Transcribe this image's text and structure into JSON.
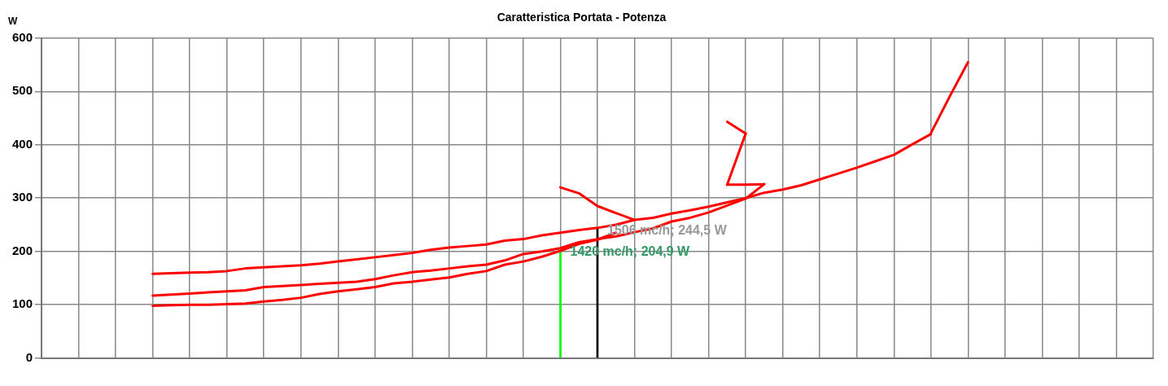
{
  "chart_data": {
    "type": "line",
    "title": "Caratteristica Portata - Potenza",
    "ylabel": "W",
    "categories": [
      null,
      null,
      null,
      null,
      null,
      null,
      null,
      null,
      null,
      null,
      null,
      null,
      null,
      null,
      null,
      null,
      null,
      null,
      null,
      null,
      null,
      null,
      null,
      null,
      null,
      null,
      null,
      null,
      null,
      null,
      null,
      null,
      null,
      null,
      null,
      null,
      null,
      null,
      null,
      null,
      null,
      null,
      null,
      null,
      null,
      null,
      null,
      null,
      null,
      null,
      null,
      null,
      null,
      null,
      null,
      null,
      null,
      null,
      null,
      null,
      null
    ],
    "series": [
      {
        "color": "#ff0000",
        "values": [
          null,
          null,
          null,
          null,
          null,
          null,
          158,
          159,
          160,
          161,
          163,
          168,
          170,
          172,
          174,
          177,
          181,
          185,
          189,
          193,
          197,
          203,
          207,
          210,
          213,
          220,
          223,
          230,
          235,
          240,
          244,
          250,
          259,
          263,
          271,
          277,
          284,
          292,
          300,
          310,
          316,
          324,
          335,
          346,
          357,
          369,
          381,
          401,
          420,
          null,
          null,
          null,
          null,
          null,
          null,
          null,
          null,
          null,
          null,
          null,
          null
        ]
      },
      {
        "color": "#ff0000",
        "values": [
          null,
          null,
          null,
          null,
          null,
          null,
          null,
          null,
          null,
          null,
          null,
          null,
          null,
          null,
          null,
          null,
          null,
          null,
          null,
          null,
          null,
          null,
          null,
          null,
          null,
          null,
          null,
          null,
          null,
          null,
          null,
          null,
          null,
          null,
          null,
          null,
          null,
          null,
          null,
          null,
          null,
          null,
          null,
          null,
          null,
          null,
          null,
          null,
          422,
          490,
          555,
          null,
          null,
          null,
          null,
          null,
          null,
          null,
          null,
          null,
          null
        ]
      },
      {
        "color": "#ff0000",
        "values": [
          null,
          null,
          null,
          null,
          null,
          null,
          null,
          null,
          null,
          null,
          null,
          null,
          null,
          null,
          null,
          null,
          null,
          null,
          null,
          null,
          null,
          null,
          null,
          null,
          null,
          null,
          null,
          null,
          320,
          309,
          285,
          272,
          259,
          null,
          null,
          null,
          null,
          null,
          null,
          null,
          null,
          null,
          null,
          null,
          null,
          null,
          null,
          null,
          null,
          null,
          null,
          null,
          null,
          null,
          null,
          null,
          null,
          null,
          null,
          null,
          null
        ]
      },
      {
        "color": "#ff0000",
        "values": [
          null,
          null,
          null,
          null,
          null,
          null,
          117,
          119,
          121,
          123,
          125,
          127,
          133,
          135,
          137,
          139,
          141,
          143,
          148,
          155,
          161,
          164,
          168,
          172,
          175,
          183,
          195,
          200,
          206,
          217,
          223,
          228,
          236,
          243,
          256,
          263,
          273,
          286,
          299,
          326,
          null,
          null,
          null,
          null,
          null,
          null,
          null,
          null,
          null,
          null,
          null,
          null,
          null,
          null,
          null,
          null,
          null,
          null,
          null,
          null,
          null
        ]
      },
      {
        "color": "#ff0000",
        "values": [
          null,
          null,
          null,
          null,
          null,
          null,
          null,
          null,
          null,
          null,
          null,
          null,
          null,
          null,
          null,
          null,
          null,
          null,
          null,
          null,
          null,
          null,
          null,
          null,
          null,
          null,
          null,
          null,
          null,
          null,
          null,
          null,
          null,
          null,
          null,
          null,
          null,
          325,
          325,
          326,
          null,
          null,
          null,
          null,
          null,
          null,
          null,
          null,
          null,
          null,
          null,
          null,
          null,
          null,
          null,
          null,
          null,
          null,
          null,
          null,
          null
        ]
      },
      {
        "color": "#ff0000",
        "values": [
          null,
          null,
          null,
          null,
          null,
          null,
          null,
          null,
          null,
          null,
          null,
          null,
          null,
          null,
          null,
          null,
          null,
          null,
          null,
          null,
          null,
          null,
          null,
          null,
          null,
          null,
          null,
          null,
          null,
          null,
          null,
          null,
          null,
          null,
          null,
          null,
          null,
          325,
          421,
          null,
          null,
          null,
          null,
          null,
          null,
          null,
          null,
          null,
          null,
          null,
          null,
          null,
          null,
          null,
          null,
          null,
          null,
          null,
          null,
          null,
          null
        ]
      },
      {
        "color": "#ff0000",
        "values": [
          null,
          null,
          null,
          null,
          null,
          null,
          null,
          null,
          null,
          null,
          null,
          null,
          null,
          null,
          null,
          null,
          null,
          null,
          null,
          null,
          null,
          null,
          null,
          null,
          null,
          null,
          null,
          null,
          null,
          null,
          null,
          null,
          null,
          null,
          null,
          null,
          null,
          443,
          421,
          null,
          null,
          null,
          null,
          null,
          null,
          null,
          null,
          null,
          null,
          null,
          null,
          null,
          null,
          null,
          null,
          null,
          null,
          null,
          null,
          null,
          null
        ]
      },
      {
        "color": "#ff0000",
        "values": [
          null,
          null,
          null,
          null,
          null,
          null,
          98,
          99,
          100,
          100,
          101,
          102,
          106,
          109,
          113,
          120,
          125,
          129,
          133,
          140,
          143,
          147,
          151,
          158,
          163,
          175,
          181,
          190,
          201,
          214,
          222,
          235,
          null,
          null,
          null,
          null,
          null,
          null,
          null,
          null,
          null,
          null,
          null,
          null,
          null,
          null,
          null,
          null,
          null,
          null,
          null,
          null,
          null,
          null,
          null,
          null,
          null,
          null,
          null,
          null,
          null
        ]
      },
      {
        "type": "bar",
        "color": "#000000",
        "values": [
          null,
          null,
          null,
          null,
          null,
          null,
          null,
          null,
          null,
          null,
          null,
          null,
          null,
          null,
          null,
          null,
          null,
          null,
          null,
          null,
          null,
          null,
          null,
          null,
          null,
          null,
          null,
          null,
          null,
          null,
          244.5,
          null,
          null,
          null,
          null,
          null,
          null,
          null,
          null,
          null,
          null,
          null,
          null,
          null,
          null,
          null,
          null,
          null,
          null,
          null,
          null,
          null,
          null,
          null,
          null,
          null,
          null,
          null,
          null,
          null,
          null
        ]
      },
      {
        "type": "bar",
        "color": "#00ff00",
        "values": [
          null,
          null,
          null,
          null,
          null,
          null,
          null,
          null,
          null,
          null,
          null,
          null,
          null,
          null,
          null,
          null,
          null,
          null,
          null,
          null,
          null,
          null,
          null,
          null,
          null,
          null,
          null,
          null,
          204.9,
          null,
          null,
          null,
          null,
          null,
          null,
          null,
          null,
          null,
          null,
          null,
          null,
          null,
          null,
          null,
          null,
          null,
          null,
          null,
          null,
          null,
          null,
          null,
          null,
          null,
          null,
          null,
          null,
          null,
          null,
          null,
          null
        ]
      }
    ],
    "annotations": [
      "1506 mc/h; 244,5 W",
      "1420 mc/h; 204,9 W"
    ],
    "ylim": [
      0,
      600
    ],
    "yticks": [
      0,
      100,
      200,
      300,
      400,
      500,
      600
    ],
    "grid": true,
    "legend": false,
    "marker": "none",
    "line_style": "solid"
  }
}
